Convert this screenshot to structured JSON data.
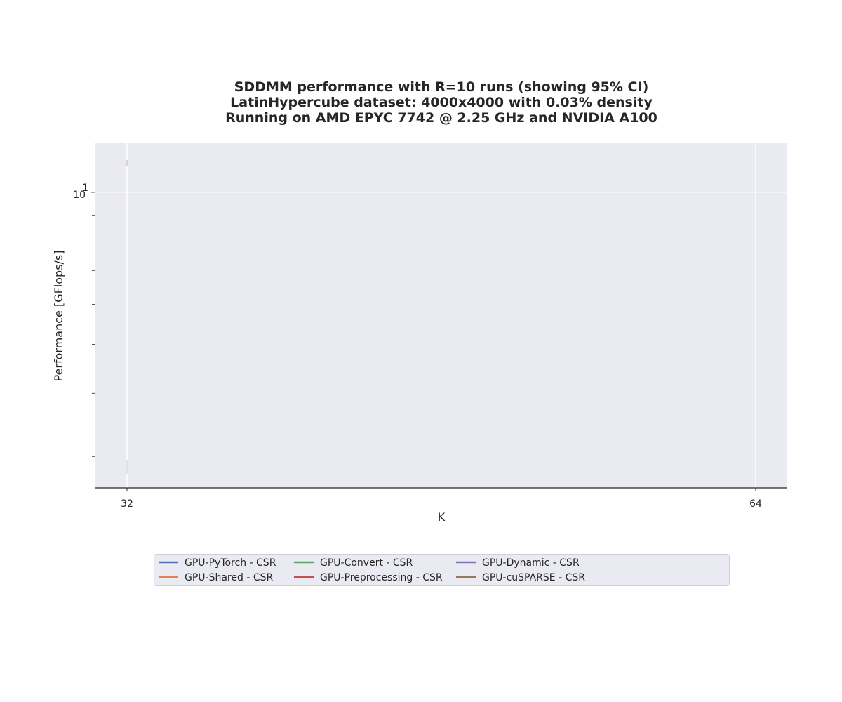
{
  "chart_data": {
    "type": "line",
    "title_lines": [
      "SDDMM performance with R=10 runs (showing 95% CI)",
      "LatinHypercube dataset: 4000x4000 with 0.03% density",
      "Running on AMD EPYC 7742 @ 2.25 GHz and NVIDIA A100"
    ],
    "xlabel": "K",
    "ylabel": "Performance [GFlops/s]",
    "x_ticks": [
      "32",
      "64"
    ],
    "x_range": [
      32,
      64
    ],
    "y_scale": "log",
    "y_major_tick": {
      "base": "10",
      "exponent": "1",
      "value": 10
    },
    "y_minor_ticks": [
      3,
      4,
      5,
      6,
      7,
      8,
      9
    ],
    "y_range": [
      2.6,
      12.5
    ],
    "grid": true,
    "legend_placement": "bottom-center",
    "series": [
      {
        "name": "GPU-PyTorch - CSR",
        "color": "#4c72b0",
        "values": []
      },
      {
        "name": "GPU-Shared - CSR",
        "color": "#dd8452",
        "values": []
      },
      {
        "name": "GPU-Convert - CSR",
        "color": "#55a868",
        "values": []
      },
      {
        "name": "GPU-Preprocessing - CSR",
        "color": "#c44e52",
        "values": []
      },
      {
        "name": "GPU-Dynamic - CSR",
        "color": "#8172b3",
        "values": []
      },
      {
        "name": "GPU-cuSPARSE - CSR",
        "color": "#937860",
        "values": []
      }
    ]
  }
}
